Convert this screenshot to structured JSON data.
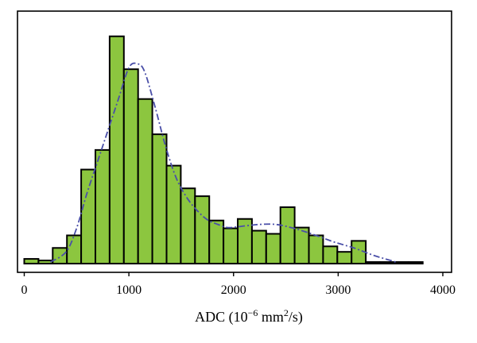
{
  "chart_data": {
    "type": "bar",
    "subtype": "histogram",
    "xlabel": "ADC (10",
    "xlabel_exp": "−6",
    "xlabel_unit": " mm",
    "xlabel_unit_exp": "2",
    "xlabel_tail": "/s)",
    "xlim": [
      -60,
      4000
    ],
    "ylim": [
      0,
      310
    ],
    "xticks": [
      0,
      1000,
      2000,
      3000,
      4000
    ],
    "xtick_labels": [
      "0",
      "1000",
      "2000",
      "3000",
      "4000"
    ],
    "grid": false,
    "bin_width": 136,
    "bins": [
      {
        "start": 0,
        "count": 6
      },
      {
        "start": 136,
        "count": 4
      },
      {
        "start": 272,
        "count": 20
      },
      {
        "start": 408,
        "count": 36
      },
      {
        "start": 544,
        "count": 120
      },
      {
        "start": 680,
        "count": 145
      },
      {
        "start": 816,
        "count": 290
      },
      {
        "start": 952,
        "count": 248
      },
      {
        "start": 1088,
        "count": 210
      },
      {
        "start": 1224,
        "count": 165
      },
      {
        "start": 1360,
        "count": 125
      },
      {
        "start": 1496,
        "count": 96
      },
      {
        "start": 1632,
        "count": 86
      },
      {
        "start": 1768,
        "count": 55
      },
      {
        "start": 1904,
        "count": 45
      },
      {
        "start": 2040,
        "count": 57
      },
      {
        "start": 2176,
        "count": 42
      },
      {
        "start": 2312,
        "count": 38
      },
      {
        "start": 2448,
        "count": 72
      },
      {
        "start": 2584,
        "count": 46
      },
      {
        "start": 2720,
        "count": 36
      },
      {
        "start": 2856,
        "count": 22
      },
      {
        "start": 2992,
        "count": 15
      },
      {
        "start": 3128,
        "count": 29
      },
      {
        "start": 3264,
        "count": 2
      },
      {
        "start": 3400,
        "count": 2
      },
      {
        "start": 3536,
        "count": 2
      },
      {
        "start": 3672,
        "count": 2
      }
    ],
    "density_curve": {
      "x": [
        250,
        400,
        500,
        600,
        700,
        800,
        900,
        1000,
        1080,
        1150,
        1250,
        1350,
        1450,
        1550,
        1650,
        1750,
        1850,
        1950,
        2100,
        2250,
        2400,
        2550,
        2700,
        2850,
        2950,
        3050,
        3150,
        3250,
        3350,
        3450,
        3550
      ],
      "y": [
        2,
        15,
        45,
        90,
        130,
        170,
        210,
        250,
        255,
        245,
        200,
        150,
        110,
        85,
        68,
        56,
        50,
        46,
        48,
        50,
        50,
        46,
        40,
        33,
        28,
        24,
        20,
        15,
        10,
        6,
        2
      ]
    }
  }
}
